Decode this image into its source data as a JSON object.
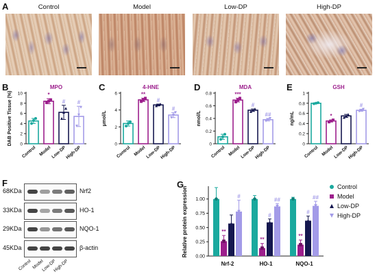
{
  "panel_a": {
    "letter": "A",
    "images": [
      {
        "title": "Control"
      },
      {
        "title": "Model"
      },
      {
        "title": "Low-DP"
      },
      {
        "title": "High-DP"
      }
    ]
  },
  "colors": {
    "control": "#1aa99e",
    "model": "#9c1e8c",
    "low": "#15174f",
    "high": "#a39be8"
  },
  "chart_data": [
    {
      "type": "bar",
      "panel": "B",
      "title": "MPO",
      "ylabel": "DAB Positive Tissue (%)",
      "ylim": [
        0,
        10
      ],
      "yticks": [
        0,
        2,
        4,
        6,
        8,
        10
      ],
      "categories": [
        "Control",
        "Model",
        "Low-DP",
        "High-DP"
      ],
      "values": [
        4.5,
        8.4,
        6.2,
        5.4
      ],
      "errors": [
        0.5,
        0.5,
        1.4,
        2.0
      ],
      "points": [
        [
          4.0,
          4.6,
          5.0
        ],
        [
          8.1,
          8.4,
          8.7
        ],
        [
          5.0,
          6.2,
          7.0
        ],
        [
          3.5,
          5.7,
          7.2
        ]
      ],
      "annotations": [
        "",
        "*",
        "#",
        "#"
      ]
    },
    {
      "type": "bar",
      "panel": "C",
      "title": "4-HNE",
      "ylabel": "μmol/L",
      "ylim": [
        0,
        6
      ],
      "yticks": [
        0,
        2,
        4,
        6
      ],
      "categories": [
        "Control",
        "Model",
        "Low-DP",
        "High-DP"
      ],
      "values": [
        2.4,
        5.2,
        4.6,
        3.4
      ],
      "errors": [
        0.3,
        0.2,
        0.1,
        0.3
      ],
      "points": [
        [
          2.1,
          2.4,
          2.6
        ],
        [
          5.0,
          5.2,
          5.4
        ],
        [
          4.5,
          4.6,
          4.7
        ],
        [
          3.1,
          3.4,
          3.7
        ]
      ],
      "annotations": [
        "",
        "**",
        "#",
        "#"
      ]
    },
    {
      "type": "bar",
      "panel": "D",
      "title": "MDA",
      "ylabel": "nmol/L",
      "ylim": [
        0,
        0.8
      ],
      "yticks": [
        0.0,
        0.2,
        0.4,
        0.6,
        0.8
      ],
      "categories": [
        "Control",
        "Model",
        "Low-DP",
        "High-DP"
      ],
      "values": [
        0.11,
        0.69,
        0.53,
        0.38
      ],
      "errors": [
        0.04,
        0.03,
        0.02,
        0.02
      ],
      "points": [
        [
          0.07,
          0.11,
          0.15
        ],
        [
          0.66,
          0.69,
          0.72
        ],
        [
          0.51,
          0.53,
          0.55
        ],
        [
          0.36,
          0.38,
          0.4
        ]
      ],
      "annotations": [
        "",
        "***",
        "#",
        "##"
      ]
    },
    {
      "type": "bar",
      "panel": "E",
      "title": "GSH",
      "ylabel": "ng/mL",
      "ylim": [
        0,
        1.0
      ],
      "yticks": [
        0.0,
        0.2,
        0.4,
        0.6,
        0.8,
        1.0
      ],
      "categories": [
        "Control",
        "Model",
        "Low-DP",
        "High-DP"
      ],
      "values": [
        0.8,
        0.45,
        0.55,
        0.66
      ],
      "errors": [
        0.01,
        0.02,
        0.03,
        0.02
      ],
      "points": [
        [
          0.79,
          0.8,
          0.81
        ],
        [
          0.43,
          0.45,
          0.47
        ],
        [
          0.52,
          0.55,
          0.58
        ],
        [
          0.64,
          0.66,
          0.68
        ]
      ],
      "annotations": [
        "",
        "*",
        "",
        "#"
      ]
    },
    {
      "type": "bar",
      "panel": "G",
      "ylabel": "Relative protein expression",
      "ylim": [
        0,
        1.2
      ],
      "yticks": [
        0.0,
        0.25,
        0.5,
        0.75,
        1.0
      ],
      "ytick_labels": [
        "0.00",
        "0.25",
        "0.50",
        "0.75",
        "1.00"
      ],
      "categories": [
        "Nrf-2",
        "HO-1",
        "NQO-1"
      ],
      "legend": "right",
      "series": [
        {
          "name": "Control",
          "values": [
            1.0,
            1.0,
            1.0
          ],
          "errors": [
            0.2,
            0.06,
            0.03
          ],
          "annotations": [
            "",
            "",
            ""
          ]
        },
        {
          "name": "Model",
          "values": [
            0.26,
            0.14,
            0.2
          ],
          "errors": [
            0.1,
            0.08,
            0.08
          ],
          "annotations": [
            "**",
            "**",
            "**"
          ]
        },
        {
          "name": "Low-DP",
          "values": [
            0.57,
            0.59,
            0.62
          ],
          "errors": [
            0.15,
            0.06,
            0.08
          ],
          "annotations": [
            "",
            "#",
            "#"
          ]
        },
        {
          "name": "High-DP",
          "values": [
            0.78,
            0.87,
            0.88
          ],
          "errors": [
            0.2,
            0.05,
            0.08
          ],
          "annotations": [
            "#",
            "##",
            "##"
          ]
        }
      ]
    }
  ],
  "panel_f": {
    "letter": "F",
    "lanes": [
      "Control",
      "Model",
      "Low-DP",
      "High-DP"
    ],
    "rows": [
      {
        "kda": "68KDa",
        "name": "Nrf2",
        "intensity": [
          1.0,
          0.35,
          0.6,
          0.8
        ]
      },
      {
        "kda": "33KDa",
        "name": "HO-1",
        "intensity": [
          1.0,
          0.3,
          0.6,
          0.85
        ]
      },
      {
        "kda": "29KDa",
        "name": "NQO-1",
        "intensity": [
          1.0,
          0.4,
          0.65,
          0.85
        ]
      },
      {
        "kda": "45KDa",
        "name": "β-actin",
        "intensity": [
          1.0,
          1.0,
          1.0,
          1.0
        ]
      }
    ]
  }
}
